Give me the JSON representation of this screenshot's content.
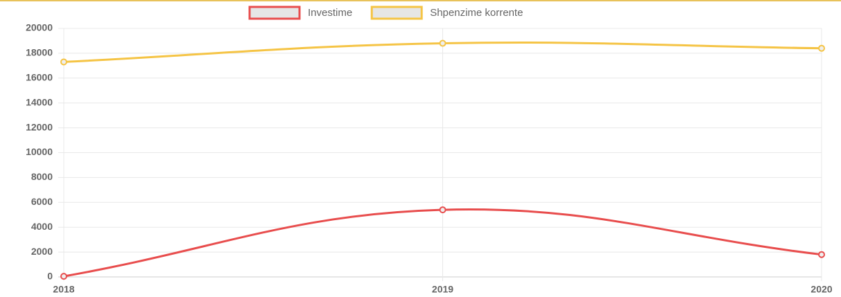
{
  "chart_data": {
    "type": "line",
    "categories": [
      "2018",
      "2019",
      "2020"
    ],
    "series": [
      {
        "name": "Investime",
        "color": "#e84d4d",
        "values": [
          50,
          5400,
          1800
        ]
      },
      {
        "name": "Shpenzime korrente",
        "color": "#f5c445",
        "values": [
          17300,
          18800,
          18400
        ]
      }
    ],
    "ylim": [
      0,
      20000
    ],
    "yticks": [
      0,
      2000,
      4000,
      6000,
      8000,
      10000,
      12000,
      14000,
      16000,
      18000,
      20000
    ],
    "grid": true,
    "legend": "top"
  }
}
